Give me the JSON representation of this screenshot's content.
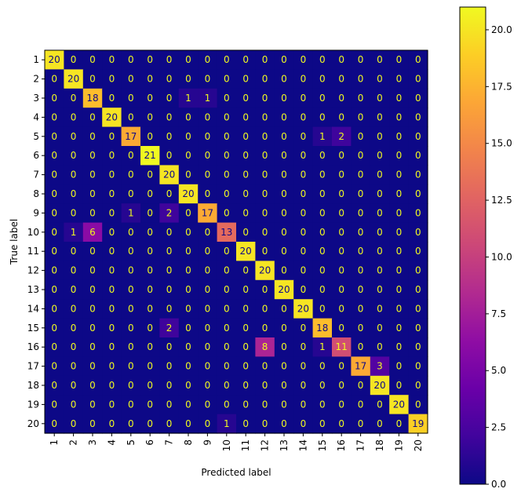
{
  "chart_data": {
    "type": "heatmap",
    "title": "",
    "xlabel": "Predicted label",
    "ylabel": "True label",
    "x_categories": [
      "1",
      "2",
      "3",
      "4",
      "5",
      "6",
      "7",
      "8",
      "9",
      "10",
      "11",
      "12",
      "13",
      "14",
      "15",
      "16",
      "17",
      "18",
      "19",
      "20"
    ],
    "y_categories": [
      "1",
      "2",
      "3",
      "4",
      "5",
      "6",
      "7",
      "8",
      "9",
      "10",
      "11",
      "12",
      "13",
      "14",
      "15",
      "16",
      "17",
      "18",
      "19",
      "20"
    ],
    "colormap": "plasma",
    "colorbar": {
      "min": 0,
      "max": 21,
      "ticks": [
        "0.0",
        "2.5",
        "5.0",
        "7.5",
        "10.0",
        "12.5",
        "15.0",
        "17.5",
        "20.0"
      ]
    },
    "matrix": [
      [
        20,
        0,
        0,
        0,
        0,
        0,
        0,
        0,
        0,
        0,
        0,
        0,
        0,
        0,
        0,
        0,
        0,
        0,
        0,
        0
      ],
      [
        0,
        20,
        0,
        0,
        0,
        0,
        0,
        0,
        0,
        0,
        0,
        0,
        0,
        0,
        0,
        0,
        0,
        0,
        0,
        0
      ],
      [
        0,
        0,
        18,
        0,
        0,
        0,
        0,
        1,
        1,
        0,
        0,
        0,
        0,
        0,
        0,
        0,
        0,
        0,
        0,
        0
      ],
      [
        0,
        0,
        0,
        20,
        0,
        0,
        0,
        0,
        0,
        0,
        0,
        0,
        0,
        0,
        0,
        0,
        0,
        0,
        0,
        0
      ],
      [
        0,
        0,
        0,
        0,
        17,
        0,
        0,
        0,
        0,
        0,
        0,
        0,
        0,
        0,
        1,
        2,
        0,
        0,
        0,
        0
      ],
      [
        0,
        0,
        0,
        0,
        0,
        21,
        0,
        0,
        0,
        0,
        0,
        0,
        0,
        0,
        0,
        0,
        0,
        0,
        0,
        0
      ],
      [
        0,
        0,
        0,
        0,
        0,
        0,
        20,
        0,
        0,
        0,
        0,
        0,
        0,
        0,
        0,
        0,
        0,
        0,
        0,
        0
      ],
      [
        0,
        0,
        0,
        0,
        0,
        0,
        0,
        20,
        0,
        0,
        0,
        0,
        0,
        0,
        0,
        0,
        0,
        0,
        0,
        0
      ],
      [
        0,
        0,
        0,
        0,
        1,
        0,
        2,
        0,
        17,
        0,
        0,
        0,
        0,
        0,
        0,
        0,
        0,
        0,
        0,
        0
      ],
      [
        0,
        1,
        6,
        0,
        0,
        0,
        0,
        0,
        0,
        13,
        0,
        0,
        0,
        0,
        0,
        0,
        0,
        0,
        0,
        0
      ],
      [
        0,
        0,
        0,
        0,
        0,
        0,
        0,
        0,
        0,
        0,
        20,
        0,
        0,
        0,
        0,
        0,
        0,
        0,
        0,
        0
      ],
      [
        0,
        0,
        0,
        0,
        0,
        0,
        0,
        0,
        0,
        0,
        0,
        20,
        0,
        0,
        0,
        0,
        0,
        0,
        0,
        0
      ],
      [
        0,
        0,
        0,
        0,
        0,
        0,
        0,
        0,
        0,
        0,
        0,
        0,
        20,
        0,
        0,
        0,
        0,
        0,
        0,
        0
      ],
      [
        0,
        0,
        0,
        0,
        0,
        0,
        0,
        0,
        0,
        0,
        0,
        0,
        0,
        20,
        0,
        0,
        0,
        0,
        0,
        0
      ],
      [
        0,
        0,
        0,
        0,
        0,
        0,
        2,
        0,
        0,
        0,
        0,
        0,
        0,
        0,
        18,
        0,
        0,
        0,
        0,
        0
      ],
      [
        0,
        0,
        0,
        0,
        0,
        0,
        0,
        0,
        0,
        0,
        0,
        8,
        0,
        0,
        1,
        11,
        0,
        0,
        0,
        0
      ],
      [
        0,
        0,
        0,
        0,
        0,
        0,
        0,
        0,
        0,
        0,
        0,
        0,
        0,
        0,
        0,
        0,
        17,
        3,
        0,
        0
      ],
      [
        0,
        0,
        0,
        0,
        0,
        0,
        0,
        0,
        0,
        0,
        0,
        0,
        0,
        0,
        0,
        0,
        0,
        20,
        0,
        0
      ],
      [
        0,
        0,
        0,
        0,
        0,
        0,
        0,
        0,
        0,
        0,
        0,
        0,
        0,
        0,
        0,
        0,
        0,
        0,
        20,
        0
      ],
      [
        0,
        0,
        0,
        0,
        0,
        0,
        0,
        0,
        0,
        1,
        0,
        0,
        0,
        0,
        0,
        0,
        0,
        0,
        0,
        19
      ]
    ]
  }
}
